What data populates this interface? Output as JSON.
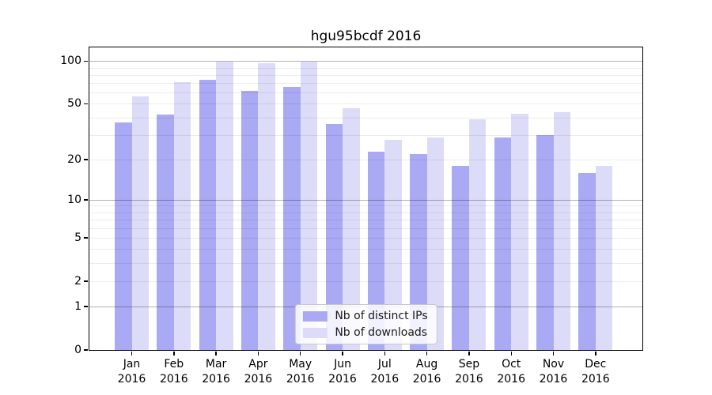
{
  "title": "hgu95bcdf 2016",
  "chart_data": {
    "type": "bar",
    "title": "hgu95bcdf 2016",
    "y_scale": "log1p",
    "categories": [
      "Jan",
      "Feb",
      "Mar",
      "Apr",
      "May",
      "Jun",
      "Jul",
      "Aug",
      "Sep",
      "Oct",
      "Nov",
      "Dec"
    ],
    "year": "2016",
    "series": [
      {
        "name": "Nb of distinct IPs",
        "color": "#a9a9f4",
        "values": [
          37,
          42,
          74,
          62,
          66,
          36,
          23,
          22,
          18,
          29,
          30,
          16
        ]
      },
      {
        "name": "Nb of downloads",
        "color": "#dcdcf9",
        "values": [
          57,
          72,
          100,
          97,
          100,
          47,
          28,
          29,
          39,
          43,
          44,
          18
        ]
      }
    ],
    "y_ticks": [
      0,
      1,
      2,
      5,
      10,
      20,
      50,
      100
    ],
    "y_major_gridlines": [
      1,
      10,
      100
    ],
    "y_minor_gridlines": [
      2,
      3,
      4,
      5,
      6,
      7,
      8,
      9,
      20,
      30,
      40,
      50,
      60,
      70,
      80,
      90
    ],
    "ylim": [
      0,
      125
    ],
    "grid": true,
    "legend_position": "lower center inside plot"
  },
  "colors": {
    "distinct_ips_bar": "#a9a9f4",
    "downloads_bar": "#dcdcf9",
    "axis": "#000000",
    "major_gridline": "#b2b2b2",
    "minor_gridline": "#ececec",
    "legend_border": "#c7c7c7",
    "background": "#ffffff"
  }
}
